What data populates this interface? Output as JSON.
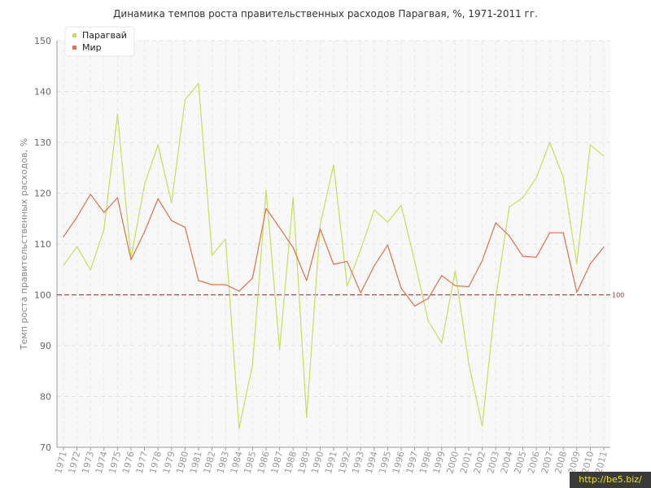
{
  "chart_data": {
    "type": "line",
    "title": "Динамика темпов роста правительственных расходов Парагвая, %, 1971-2011 гг.",
    "xlabel": "",
    "ylabel": "Темп роста правительственных расходов, %",
    "ylim": [
      70,
      150
    ],
    "yticks": [
      "70",
      "80",
      "90",
      "100",
      "110",
      "120",
      "130",
      "140",
      "150"
    ],
    "grid": true,
    "legend_position": "top-left",
    "x": [
      "1971",
      "1972",
      "1973",
      "1974",
      "1975",
      "1976",
      "1977",
      "1978",
      "1979",
      "1980",
      "1981",
      "1982",
      "1983",
      "1984",
      "1985",
      "1986",
      "1987",
      "1988",
      "1989",
      "1990",
      "1991",
      "1992",
      "1993",
      "1994",
      "1995",
      "1996",
      "1997",
      "1998",
      "1999",
      "2000",
      "2001",
      "2002",
      "2003",
      "2004",
      "2005",
      "2006",
      "2007",
      "2008",
      "2009",
      "2010",
      "2011"
    ],
    "series": [
      {
        "name": "Парагвай",
        "color": "#c3e15a",
        "values": [
          105.8,
          109.5,
          104.9,
          112.9,
          135.5,
          107.2,
          121.7,
          129.5,
          118.1,
          138.4,
          141.6,
          107.8,
          111.0,
          73.7,
          86.3,
          120.6,
          89.2,
          119.2,
          75.9,
          113.7,
          125.6,
          101.7,
          108.9,
          116.7,
          114.3,
          117.6,
          106.6,
          94.9,
          90.5,
          104.7,
          86.5,
          74.2,
          99.4,
          117.3,
          119.1,
          123.0,
          130.0,
          123.1,
          106.1,
          129.5,
          127.3
        ]
      },
      {
        "name": "Мир",
        "color": "#e0714a",
        "values": [
          111.4,
          115.3,
          119.8,
          116.2,
          119.1,
          106.9,
          112.4,
          118.9,
          114.6,
          113.3,
          102.8,
          102.0,
          102.0,
          100.7,
          103.3,
          117.0,
          113.2,
          109.3,
          102.8,
          113.0,
          106.0,
          106.6,
          100.4,
          105.7,
          109.8,
          101.3,
          97.8,
          99.3,
          103.8,
          101.8,
          101.6,
          106.7,
          114.2,
          111.6,
          107.6,
          107.4,
          112.2,
          112.2,
          100.5,
          106.1,
          109.4
        ]
      }
    ],
    "reference_line": {
      "value": 100,
      "label": "100",
      "color": "#9b4a52"
    }
  },
  "watermark": "http://be5.biz/"
}
